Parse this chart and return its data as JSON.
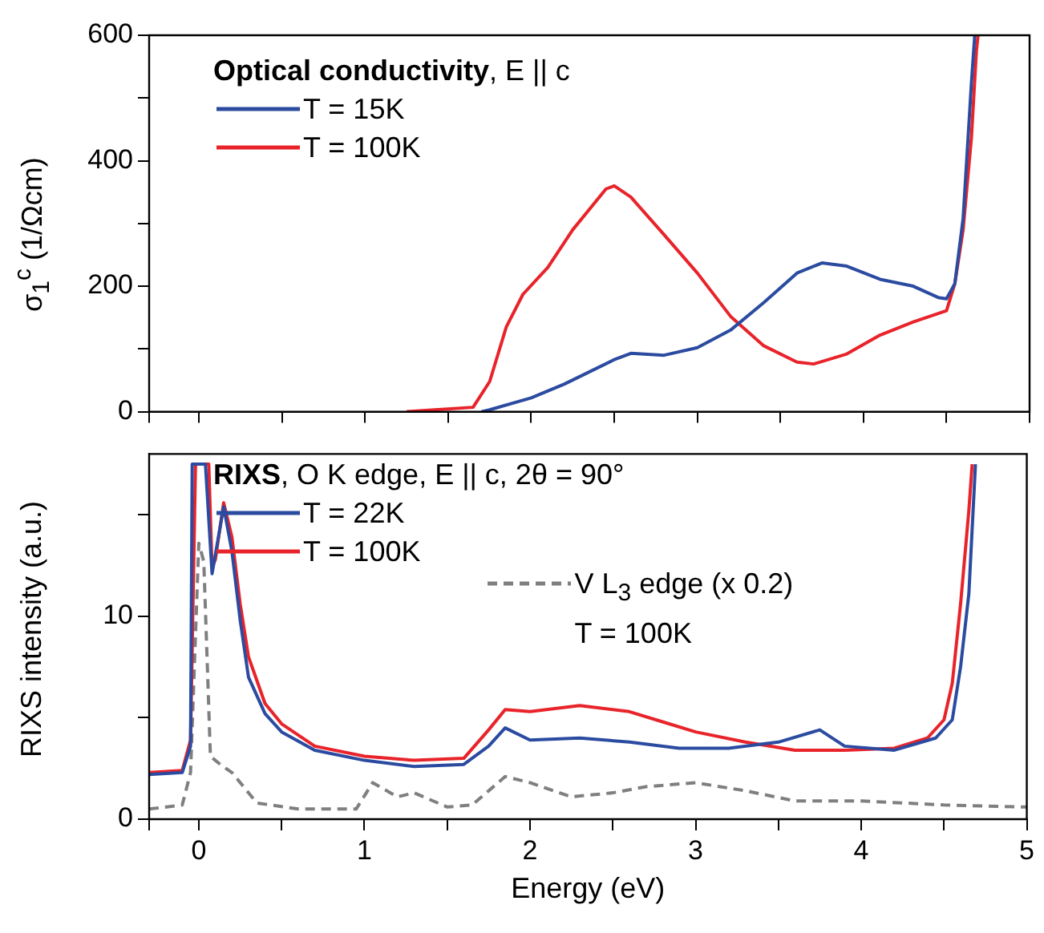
{
  "chart_data": [
    {
      "type": "line",
      "ylabel": "σ$_{1}$$^{c}$ (1/Ωcm)",
      "legend_title": "Optical conductivity, E || c",
      "legend": "top left",
      "tick_labels": "y",
      "marker": "none",
      "xlim": [
        -0.3,
        5
      ],
      "xticks": [
        {
          "value": -0.3,
          "label": null
        },
        {
          "value": 0,
          "label": null
        },
        {
          "value": 0.5,
          "label": null
        },
        {
          "value": 1,
          "label": null
        },
        {
          "value": 1.5,
          "label": null
        },
        {
          "value": 2,
          "label": null
        },
        {
          "value": 2.5,
          "label": null
        },
        {
          "value": 3,
          "label": null
        },
        {
          "value": 3.5,
          "label": null
        },
        {
          "value": 4,
          "label": null
        },
        {
          "value": 4.5,
          "label": null
        },
        {
          "value": 5,
          "label": null
        }
      ],
      "ylim": [
        0,
        600
      ],
      "yticks": [
        0,
        {
          "value": 100,
          "label": null
        },
        200,
        {
          "value": 300,
          "label": null
        },
        400,
        {
          "value": 500,
          "label": null
        },
        600
      ],
      "series": [
        {
          "name": "T = 15K",
          "color": "#2b4ba0",
          "line_style": "solid",
          "x": [
            1.7,
            1.75,
            2.0,
            2.2,
            2.5,
            2.6,
            2.8,
            3.0,
            3.2,
            3.4,
            3.6,
            3.75,
            3.9,
            4.1,
            4.3,
            4.45,
            4.5,
            4.55,
            4.6,
            4.65,
            4.67
          ],
          "values": [
            0,
            3,
            22,
            44,
            83,
            93,
            90,
            102,
            130,
            174,
            221,
            237,
            232,
            211,
            200,
            182,
            180,
            204,
            308,
            524,
            600
          ]
        },
        {
          "name": "T = 100K",
          "color": "#e8232a",
          "line_style": "solid",
          "x": [
            1.25,
            1.65,
            1.75,
            1.85,
            1.95,
            2.1,
            2.25,
            2.45,
            2.5,
            2.6,
            2.8,
            3.0,
            3.2,
            3.4,
            3.6,
            3.7,
            3.9,
            4.1,
            4.3,
            4.5,
            4.55,
            4.6,
            4.65,
            4.68,
            4.69
          ],
          "values": [
            0,
            7,
            48,
            135,
            187,
            230,
            290,
            355,
            360,
            342,
            282,
            221,
            152,
            105,
            79,
            76,
            92,
            122,
            143,
            161,
            204,
            290,
            437,
            575,
            600
          ]
        }
      ]
    },
    {
      "type": "line",
      "xlabel": "Energy (eV)",
      "ylabel": "RIXS intensity (a.u.)",
      "legend_title": "RIXS, O K edge, E || c, 2θ = 90°",
      "legend": "top left",
      "marker": "none",
      "xlim": [
        -0.3,
        5
      ],
      "xticks": [
        {
          "value": -0.3,
          "label": null
        },
        0,
        {
          "value": 0.5,
          "label": null
        },
        1,
        {
          "value": 1.5,
          "label": null
        },
        2,
        {
          "value": 2.5,
          "label": null
        },
        3,
        {
          "value": 3.5,
          "label": null
        },
        4,
        {
          "value": 4.5,
          "label": null
        },
        5
      ],
      "ylim": [
        0,
        18
      ],
      "yticks": [
        0,
        {
          "value": 5,
          "label": null
        },
        10,
        {
          "value": 15,
          "label": null
        }
      ],
      "series": [
        {
          "name": "T = 22K",
          "color": "#2b4ba0",
          "line_style": "solid",
          "x": [
            -0.3,
            -0.1,
            -0.05,
            -0.04,
            0.04,
            0.08,
            0.15,
            0.2,
            0.25,
            0.3,
            0.4,
            0.5,
            0.7,
            1.0,
            1.3,
            1.6,
            1.75,
            1.85,
            2.0,
            2.3,
            2.6,
            2.9,
            3.2,
            3.5,
            3.75,
            3.9,
            4.2,
            4.45,
            4.55,
            4.6,
            4.65,
            4.69
          ],
          "values": [
            2.2,
            2.3,
            3.6,
            17.5,
            17.5,
            12.1,
            15.4,
            13.2,
            9.8,
            7.0,
            5.2,
            4.3,
            3.4,
            2.9,
            2.6,
            2.7,
            3.6,
            4.5,
            3.9,
            4.0,
            3.8,
            3.5,
            3.5,
            3.8,
            4.4,
            3.6,
            3.4,
            4.0,
            4.9,
            7.5,
            11.1,
            17.5
          ]
        },
        {
          "name": "T = 100K",
          "color": "#e8232a",
          "line_style": "solid",
          "x": [
            -0.3,
            -0.1,
            -0.05,
            -0.02,
            0.06,
            0.08,
            0.1,
            0.15,
            0.2,
            0.25,
            0.3,
            0.4,
            0.5,
            0.7,
            1.0,
            1.3,
            1.6,
            1.75,
            1.85,
            2.0,
            2.3,
            2.6,
            2.8,
            3.0,
            3.3,
            3.6,
            3.9,
            4.2,
            4.4,
            4.5,
            4.55,
            4.6,
            4.65,
            4.67
          ],
          "values": [
            2.3,
            2.4,
            3.9,
            17.5,
            17.5,
            12.4,
            12.8,
            15.6,
            13.9,
            10.6,
            8.0,
            5.7,
            4.7,
            3.6,
            3.1,
            2.9,
            3.0,
            4.4,
            5.4,
            5.3,
            5.6,
            5.3,
            4.8,
            4.3,
            3.8,
            3.4,
            3.4,
            3.5,
            4.0,
            4.9,
            6.7,
            10.6,
            15.2,
            17.5
          ]
        },
        {
          "name": "V L$_{3}$ edge (x 0.2)\nT = 100K",
          "color": "#7f7f7f",
          "line_style": "dashed",
          "x": [
            -0.3,
            -0.1,
            -0.05,
            0.0,
            0.03,
            0.07,
            0.13,
            0.2,
            0.35,
            0.6,
            0.95,
            1.05,
            1.2,
            1.3,
            1.5,
            1.65,
            1.85,
            2.0,
            2.25,
            2.5,
            2.7,
            3.0,
            3.3,
            3.6,
            4.0,
            4.5,
            5.0
          ],
          "values": [
            0.5,
            0.7,
            2.3,
            13.6,
            12.7,
            3.1,
            2.7,
            2.3,
            0.8,
            0.5,
            0.5,
            1.8,
            1.1,
            1.3,
            0.6,
            0.7,
            2.1,
            1.8,
            1.1,
            1.3,
            1.6,
            1.8,
            1.4,
            0.9,
            0.9,
            0.7,
            0.6
          ]
        }
      ]
    }
  ]
}
